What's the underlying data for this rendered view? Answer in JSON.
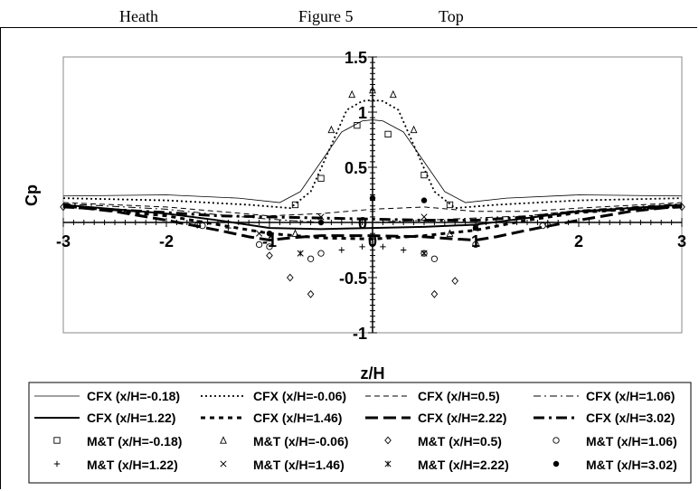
{
  "header": {
    "author": "Heath",
    "figure": "Figure 5",
    "position": "Top"
  },
  "chart_data": {
    "type": "line",
    "title": "",
    "xlabel": "z/H",
    "ylabel": "Cp",
    "xlim": [
      -3,
      3
    ],
    "ylim": [
      -1,
      1.5
    ],
    "x_ticks": [
      "-3",
      "-2",
      "-1",
      "0",
      "1",
      "2",
      "3"
    ],
    "y_ticks": [
      "1.5",
      "1",
      "0.5",
      "0",
      "-0.5",
      "-1"
    ],
    "grid": false,
    "legend_position": "bottom",
    "series": [
      {
        "name": "CFX (x/H=-0.18)",
        "kind": "line",
        "dash": "solid-thin",
        "x": [
          -3,
          -2,
          -1.3,
          -0.9,
          -0.7,
          -0.5,
          -0.3,
          -0.1,
          0,
          0.1,
          0.3,
          0.5,
          0.7,
          0.9,
          1.3,
          2,
          3
        ],
        "y": [
          0.24,
          0.25,
          0.22,
          0.18,
          0.28,
          0.55,
          0.82,
          0.92,
          0.93,
          0.92,
          0.82,
          0.55,
          0.28,
          0.18,
          0.22,
          0.25,
          0.24
        ]
      },
      {
        "name": "CFX (x/H=-0.06)",
        "kind": "line",
        "dash": "dotted",
        "x": [
          -3,
          -2,
          -1.2,
          -0.8,
          -0.6,
          -0.4,
          -0.25,
          -0.1,
          0,
          0.1,
          0.25,
          0.4,
          0.6,
          0.8,
          1.2,
          2,
          3
        ],
        "y": [
          0.22,
          0.2,
          0.16,
          0.13,
          0.28,
          0.7,
          1.02,
          1.1,
          1.11,
          1.1,
          1.02,
          0.7,
          0.28,
          0.13,
          0.16,
          0.2,
          0.22
        ]
      },
      {
        "name": "CFX (x/H=0.5)",
        "kind": "line",
        "dash": "dashed-thin",
        "x": [
          -3,
          -2,
          -1.5,
          -1,
          -0.5,
          0,
          0.5,
          1,
          1.5,
          2,
          3
        ],
        "y": [
          0.18,
          0.14,
          0.1,
          0.06,
          0.08,
          0.12,
          0.14,
          0.1,
          0.1,
          0.13,
          0.18
        ]
      },
      {
        "name": "CFX (x/H=1.06)",
        "kind": "line",
        "dash": "dashdot-thin",
        "x": [
          -3,
          -2,
          -1.5,
          -1,
          -0.5,
          0,
          0.5,
          1,
          1.5,
          2,
          3
        ],
        "y": [
          0.17,
          0.12,
          0.07,
          0.03,
          0.0,
          0.0,
          0.02,
          0.04,
          0.06,
          0.11,
          0.17
        ]
      },
      {
        "name": "CFX (x/H=1.22)",
        "kind": "line",
        "dash": "solid-thick",
        "x": [
          -3,
          -2,
          -1.5,
          -1,
          -0.5,
          0,
          0.5,
          1,
          1.5,
          2,
          3
        ],
        "y": [
          0.16,
          0.08,
          0.02,
          -0.05,
          -0.06,
          -0.05,
          -0.04,
          -0.02,
          0.04,
          0.1,
          0.16
        ]
      },
      {
        "name": "CFX (x/H=1.46)",
        "kind": "line",
        "dash": "dashed-thick-short",
        "x": [
          -3,
          -2,
          -1.5,
          -1,
          -0.5,
          0,
          0.5,
          1,
          1.5,
          2,
          3
        ],
        "y": [
          0.15,
          0.06,
          -0.02,
          -0.1,
          -0.14,
          -0.15,
          -0.12,
          -0.07,
          0.02,
          0.09,
          0.15
        ]
      },
      {
        "name": "CFX (x/H=2.22)",
        "kind": "line",
        "dash": "dashed-thick-long",
        "x": [
          -3,
          -2.5,
          -2,
          -1.5,
          -1.2,
          -1,
          -0.8,
          -0.5,
          0,
          0.5,
          0.8,
          1,
          1.2,
          1.5,
          2,
          2.5,
          3
        ],
        "y": [
          0.15,
          0.1,
          0.02,
          -0.07,
          -0.13,
          -0.16,
          -0.14,
          -0.12,
          -0.12,
          -0.13,
          -0.15,
          -0.16,
          -0.13,
          -0.07,
          0.02,
          0.1,
          0.15
        ]
      },
      {
        "name": "CFX (x/H=3.02)",
        "kind": "line",
        "dash": "dashdot-thick",
        "x": [
          -3,
          -2,
          -1.5,
          -1,
          -0.5,
          0,
          0.5,
          1,
          1.5,
          2,
          3
        ],
        "y": [
          0.14,
          0.09,
          0.06,
          0.05,
          0.04,
          0.03,
          0.02,
          0.02,
          0.05,
          0.1,
          0.14
        ]
      },
      {
        "name": "M&T (x/H=-0.18)",
        "kind": "marker",
        "marker": "square",
        "x": [
          -0.75,
          -0.5,
          -0.15,
          0.15,
          0.5,
          0.75
        ],
        "y": [
          0.16,
          0.4,
          0.88,
          0.8,
          0.43,
          0.16
        ]
      },
      {
        "name": "M&T (x/H=-0.06)",
        "kind": "marker",
        "marker": "triangle",
        "x": [
          -0.75,
          -0.4,
          -0.2,
          0,
          0.2,
          0.4,
          0.75
        ],
        "y": [
          -0.1,
          0.84,
          1.16,
          1.2,
          1.16,
          0.84,
          -0.1
        ]
      },
      {
        "name": "M&T (x/H=0.5)",
        "kind": "marker",
        "marker": "diamond",
        "x": [
          -3,
          -1.7,
          -1.0,
          -0.8,
          -0.6,
          0.6,
          0.8,
          1.7,
          3
        ],
        "y": [
          0.14,
          -0.02,
          -0.3,
          -0.5,
          -0.65,
          -0.65,
          -0.53,
          -0.02,
          0.14
        ]
      },
      {
        "name": "M&T (x/H=1.06)",
        "kind": "marker",
        "marker": "circle",
        "x": [
          -1.65,
          -1.1,
          -1.0,
          -0.6,
          -0.5,
          0.5,
          0.6,
          1.0,
          1.65
        ],
        "y": [
          -0.03,
          -0.2,
          -0.22,
          -0.33,
          -0.28,
          -0.28,
          -0.33,
          -0.2,
          -0.03
        ]
      },
      {
        "name": "M&T (x/H=1.22)",
        "kind": "marker",
        "marker": "plus",
        "x": [
          -1.4,
          -0.3,
          -0.1,
          0.1,
          0.3
        ],
        "y": [
          -0.05,
          -0.25,
          -0.22,
          -0.22,
          -0.25
        ]
      },
      {
        "name": "M&T (x/H=1.46)",
        "kind": "marker",
        "marker": "cross",
        "x": [
          -1.1,
          -0.5,
          0.5,
          1.0
        ],
        "y": [
          -0.1,
          0.05,
          0.05,
          -0.05
        ]
      },
      {
        "name": "M&T (x/H=2.22)",
        "kind": "marker",
        "marker": "asterisk",
        "x": [
          -0.7,
          0.5
        ],
        "y": [
          -0.28,
          -0.28
        ]
      },
      {
        "name": "M&T (x/H=3.02)",
        "kind": "marker",
        "marker": "filled-circle",
        "x": [
          -1.0,
          -0.5,
          0,
          0.5,
          1.0
        ],
        "y": [
          -0.1,
          0.0,
          0.22,
          0.2,
          -0.05
        ]
      }
    ]
  }
}
